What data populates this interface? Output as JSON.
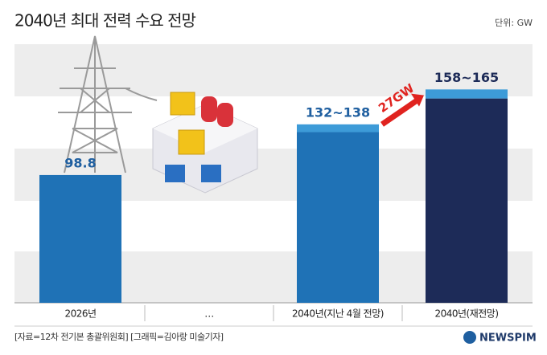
{
  "chart_data": {
    "type": "bar",
    "title": "2040년 최대 전력 수요 전망",
    "unit": "단위: GW",
    "categories": [
      "2026년",
      "…",
      "2040년(지난 4월 전망)",
      "2040년(재전망)"
    ],
    "values": [
      98.8,
      null,
      132,
      158
    ],
    "upper_values": [
      null,
      null,
      138,
      165
    ],
    "value_labels": [
      "98.8",
      null,
      "132~138",
      "158~165"
    ],
    "colors": [
      "#1f72b6",
      null,
      "#1f72b6",
      "#1d2b58"
    ],
    "upper_color": "#3d9bd8",
    "label_colors": [
      "#1f5fa0",
      null,
      "#1f5fa0",
      "#1d2b58"
    ],
    "ylim": [
      0,
      200
    ],
    "annotation": {
      "text": "27GW",
      "color": "#e0231f"
    },
    "source": "[자료=12차 전기본 총괄위원회] [그래픽=김아랑 미술기자]",
    "logo": "NEWSPIM"
  }
}
